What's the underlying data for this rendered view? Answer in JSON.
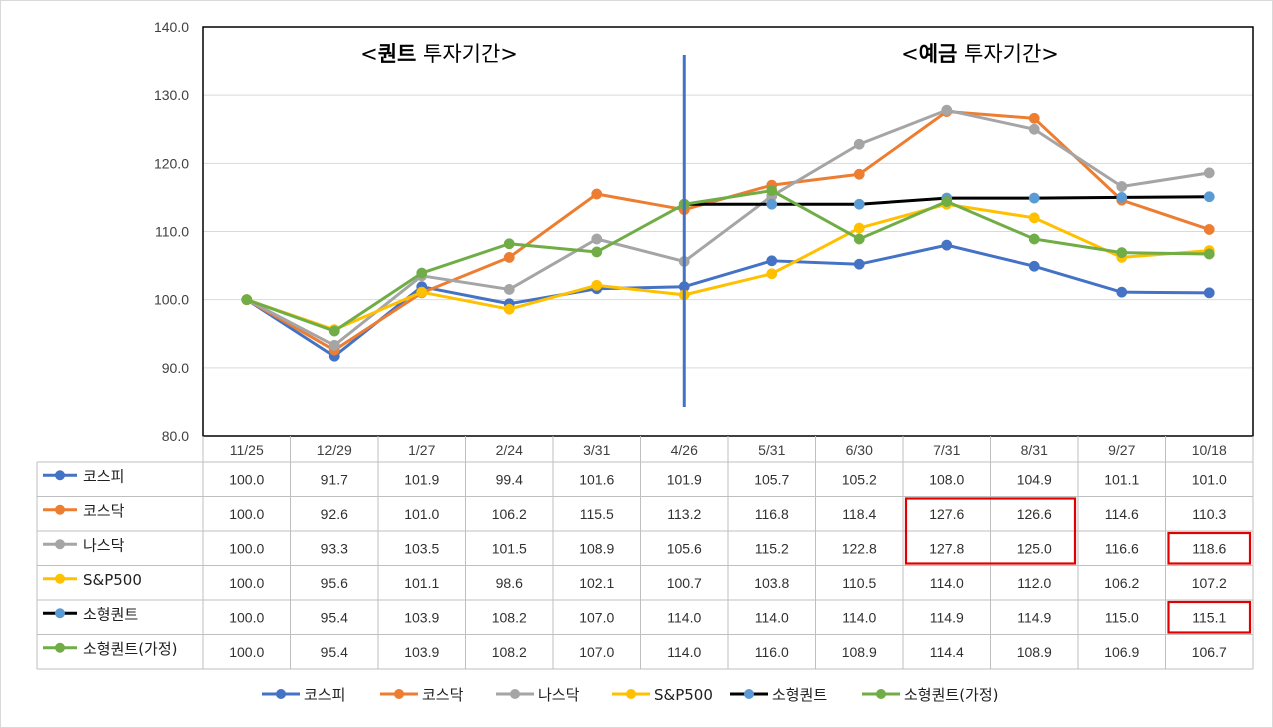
{
  "chart_data": {
    "type": "line",
    "categories": [
      "11/25",
      "12/29",
      "1/27",
      "2/24",
      "3/31",
      "4/26",
      "5/31",
      "6/30",
      "7/31",
      "8/31",
      "9/27",
      "10/18"
    ],
    "ylim": [
      80,
      140
    ],
    "y_ticks": [
      "80.0",
      "90.0",
      "100.0",
      "110.0",
      "120.0",
      "130.0",
      "140.0"
    ],
    "grid": true,
    "legend_position": "bottom",
    "annotations": {
      "left": {
        "open": "<",
        "bold": "퀀트",
        "rest": " 투자기간>"
      },
      "right": {
        "open": "<",
        "bold": "예금",
        "rest": " 투자기간>"
      }
    },
    "divider_between": [
      "4/26"
    ],
    "series": [
      {
        "name": "코스피",
        "color": "#4472C4",
        "marker": "#4472C4",
        "values": [
          100.0,
          91.7,
          101.9,
          99.4,
          101.6,
          101.9,
          105.7,
          105.2,
          108.0,
          104.9,
          101.1,
          101.0
        ],
        "labels": [
          "100.0",
          "91.7",
          "101.9",
          "99.4",
          "101.6",
          "101.9",
          "105.7",
          "105.2",
          "108.0",
          "104.9",
          "101.1",
          "101.0"
        ]
      },
      {
        "name": "코스닥",
        "color": "#ED7D31",
        "marker": "#ED7D31",
        "values": [
          100.0,
          92.6,
          101.0,
          106.2,
          115.5,
          113.2,
          116.8,
          118.4,
          127.6,
          126.6,
          114.6,
          110.3
        ],
        "labels": [
          "100.0",
          "92.6",
          "101.0",
          "106.2",
          "115.5",
          "113.2",
          "116.8",
          "118.4",
          "127.6",
          "126.6",
          "114.6",
          "110.3"
        ]
      },
      {
        "name": "나스닥",
        "color": "#A5A5A5",
        "marker": "#A5A5A5",
        "values": [
          100.0,
          93.3,
          103.5,
          101.5,
          108.9,
          105.6,
          115.2,
          122.8,
          127.8,
          125.0,
          116.6,
          118.6
        ],
        "labels": [
          "100.0",
          "93.3",
          "103.5",
          "101.5",
          "108.9",
          "105.6",
          "115.2",
          "122.8",
          "127.8",
          "125.0",
          "116.6",
          "118.6"
        ]
      },
      {
        "name": "S&P500",
        "color": "#FFC000",
        "marker": "#FFC000",
        "values": [
          100.0,
          95.6,
          101.1,
          98.6,
          102.1,
          100.7,
          103.8,
          110.5,
          114.0,
          112.0,
          106.2,
          107.2
        ],
        "labels": [
          "100.0",
          "95.6",
          "101.1",
          "98.6",
          "102.1",
          "100.7",
          "103.8",
          "110.5",
          "114.0",
          "112.0",
          "106.2",
          "107.2"
        ]
      },
      {
        "name": "소형퀀트",
        "color": "#000000",
        "marker": "#5B9BD5",
        "values": [
          null,
          null,
          null,
          null,
          null,
          114.0,
          114.0,
          114.0,
          114.9,
          114.9,
          115.0,
          115.1
        ],
        "labels": [
          "100.0",
          "95.4",
          "103.9",
          "108.2",
          "107.0",
          "114.0",
          "114.0",
          "114.0",
          "114.9",
          "114.9",
          "115.0",
          "115.1"
        ]
      },
      {
        "name": "소형퀀트(가정)",
        "color": "#70AD47",
        "marker": "#70AD47",
        "values": [
          100.0,
          95.4,
          103.9,
          108.2,
          107.0,
          114.0,
          116.0,
          108.9,
          114.4,
          108.9,
          106.9,
          106.7
        ],
        "labels": [
          "100.0",
          "95.4",
          "103.9",
          "108.2",
          "107.0",
          "114.0",
          "116.0",
          "108.9",
          "114.4",
          "108.9",
          "106.9",
          "106.7"
        ]
      }
    ],
    "highlight_boxes": [
      {
        "series": [
          "코스닥",
          "나스닥"
        ],
        "categories": [
          "7/31",
          "8/31"
        ]
      },
      {
        "series": [
          "나스닥"
        ],
        "categories": [
          "10/18"
        ]
      },
      {
        "series": [
          "소형퀀트"
        ],
        "categories": [
          "10/18"
        ]
      }
    ],
    "highlight_color": "#E00000"
  }
}
